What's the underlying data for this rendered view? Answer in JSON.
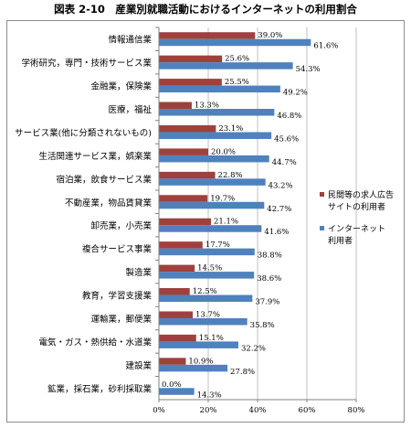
{
  "chart_data": {
    "type": "bar",
    "orientation": "horizontal",
    "title": "図表 2-10　産業別就職活動におけるインターネットの利用割合",
    "categories": [
      "情報通信業",
      "学術研究，専門・技術サービス業",
      "金融業，保険業",
      "医療，福祉",
      "サービス業(他に分類されないもの)",
      "生活関連サービス業，娯楽業",
      "宿泊業，飲食サービス業",
      "不動産業，物品賃貸業",
      "卸売業，小売業",
      "複合サービス事業",
      "製造業",
      "教育，学習支援業",
      "運輸業，郵便業",
      "電気・ガス・熱供給・水道業",
      "建設業",
      "鉱業，採石業，砂利採取業"
    ],
    "series": [
      {
        "name": "民間等の求人広告サイトの利用者",
        "legend_lines": [
          "民間等の求人広告",
          "サイトの利用者"
        ],
        "color": "#a0403d",
        "values": [
          39.0,
          25.6,
          25.5,
          13.3,
          23.1,
          20.0,
          22.8,
          19.7,
          21.1,
          17.7,
          14.5,
          12.5,
          13.7,
          15.1,
          10.9,
          0.0
        ],
        "labels": [
          "39.0%",
          "25.6%",
          "25.5%",
          "13.3%",
          "23.1%",
          "20.0%",
          "22.8%",
          "19.7%",
          "21.1%",
          "17.7%",
          "14.5%",
          "12.5%",
          "13.7%",
          "15.1%",
          "10.9%",
          "0.0%"
        ]
      },
      {
        "name": "インターネット利用者",
        "legend_lines": [
          "インターネット",
          "利用者"
        ],
        "color": "#4f81bd",
        "values": [
          61.6,
          54.3,
          49.2,
          46.8,
          45.6,
          44.7,
          43.2,
          42.7,
          41.6,
          38.8,
          38.6,
          37.9,
          35.8,
          32.2,
          27.8,
          14.3
        ],
        "labels": [
          "61.6%",
          "54.3%",
          "49.2%",
          "46.8%",
          "45.6%",
          "44.7%",
          "43.2%",
          "42.7%",
          "41.6%",
          "38.8%",
          "38.6%",
          "37.9%",
          "35.8%",
          "32.2%",
          "27.8%",
          "14.3%"
        ]
      }
    ],
    "xlim": [
      0,
      80
    ],
    "xticks": [
      0,
      20,
      40,
      60,
      80
    ],
    "xtick_labels": [
      "0%",
      "20%",
      "40%",
      "60%",
      "80%"
    ],
    "grid": "vertical",
    "legend_position": "right"
  }
}
